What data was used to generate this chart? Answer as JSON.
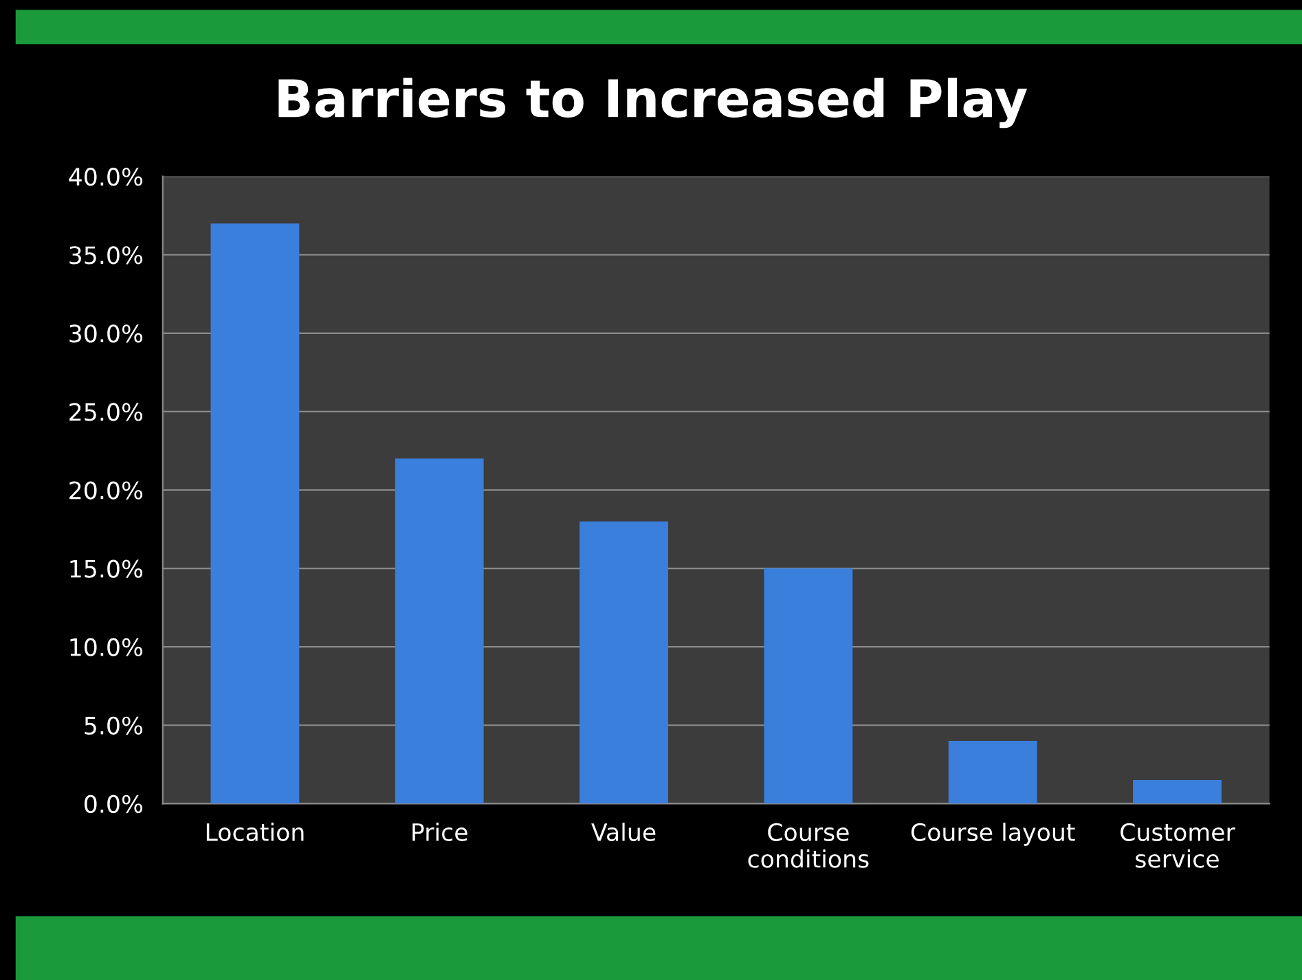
{
  "chart_data": {
    "type": "bar",
    "title": "Barriers to Increased Play",
    "categories": [
      "Location",
      "Price",
      "Value",
      "Course\nconditions",
      "Course layout",
      "Customer\nservice"
    ],
    "values": [
      37,
      22,
      18,
      15,
      4,
      1.5
    ],
    "color": "#3b7fdc",
    "ylim": [
      0,
      40
    ],
    "yticks": [
      {
        "value": 0,
        "label": "0.0%"
      },
      {
        "value": 5,
        "label": "5.0%"
      },
      {
        "value": 10,
        "label": "10.0%"
      },
      {
        "value": 15,
        "label": "15.0%"
      },
      {
        "value": 20,
        "label": "20.0%"
      },
      {
        "value": 25,
        "label": "25.0%"
      },
      {
        "value": 30,
        "label": "30.0%"
      },
      {
        "value": 35,
        "label": "35.0%"
      },
      {
        "value": 40,
        "label": "40.0%"
      }
    ],
    "grid": "y"
  }
}
